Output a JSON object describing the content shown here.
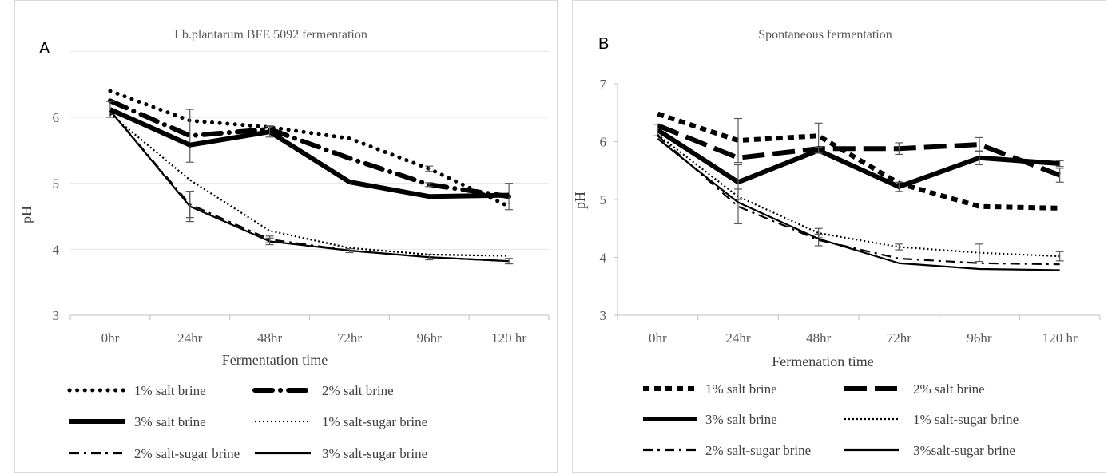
{
  "chart_data": [
    {
      "type": "line",
      "panel_letter": "A",
      "title": "Lb.plantarum BFE 5092 fermentation",
      "xlabel": "Fermentation time",
      "ylabel": "pH",
      "categories": [
        "0hr",
        "24hr",
        "48hr",
        "72hr",
        "96hr",
        "120 hr"
      ],
      "ylim": [
        3,
        7
      ],
      "yticks": [
        "3",
        "4",
        "5",
        "6"
      ],
      "grid": "horizontal",
      "legend_position": "bottom",
      "series": [
        {
          "name": "1% salt brine",
          "style": "dot",
          "values": [
            6.4,
            5.95,
            5.85,
            5.68,
            5.22,
            4.65
          ],
          "errors": [
            0,
            0,
            0,
            0,
            0.04,
            0
          ]
        },
        {
          "name": "2% salt brine",
          "style": "dashdot-heavy",
          "values": [
            6.25,
            5.72,
            5.82,
            5.38,
            4.98,
            4.8
          ],
          "errors": [
            0,
            0.4,
            0.05,
            0,
            0.03,
            0.2
          ]
        },
        {
          "name": "3% salt brine",
          "style": "solid-heavy",
          "values": [
            6.12,
            5.58,
            5.78,
            5.02,
            4.8,
            4.82
          ],
          "errors": [
            0.12,
            0,
            0.08,
            0,
            0,
            0
          ]
        },
        {
          "name": "1% salt-sugar brine",
          "style": "dot-thin",
          "values": [
            6.05,
            5.05,
            4.28,
            4.02,
            3.92,
            3.9
          ],
          "errors": [
            0,
            0,
            0,
            0,
            0,
            0
          ]
        },
        {
          "name": "2% salt-sugar brine",
          "style": "dashdot-thin",
          "values": [
            6.1,
            4.68,
            4.15,
            3.98,
            3.88,
            3.82
          ],
          "errors": [
            0,
            0.2,
            0.05,
            0,
            0,
            0.04
          ]
        },
        {
          "name": "3% salt-sugar brine",
          "style": "solid-thin",
          "values": [
            6.1,
            4.65,
            4.12,
            3.98,
            3.88,
            3.82
          ],
          "errors": [
            0,
            0.23,
            0.05,
            0.03,
            0.04,
            0.04
          ]
        }
      ]
    },
    {
      "type": "line",
      "panel_letter": "B",
      "title": "Spontaneous fermentation",
      "xlabel": "Fermenation time",
      "ylabel": "pH",
      "categories": [
        "0hr",
        "24hr",
        "48hr",
        "72hr",
        "96hr",
        "120 hr"
      ],
      "ylim": [
        3,
        7
      ],
      "yticks": [
        "3",
        "4",
        "5",
        "6",
        "7"
      ],
      "grid": "none",
      "legend_position": "bottom",
      "series": [
        {
          "name": "1% salt brine",
          "style": "dash-square",
          "values": [
            6.48,
            6.02,
            6.1,
            5.28,
            4.88,
            4.85
          ],
          "errors": [
            0,
            0.38,
            0.22,
            0,
            0,
            0
          ]
        },
        {
          "name": "2% salt brine",
          "style": "longdash-heavy",
          "values": [
            6.28,
            5.72,
            5.88,
            5.88,
            5.95,
            5.42
          ],
          "errors": [
            0,
            0,
            0,
            0.1,
            0.12,
            0.12
          ]
        },
        {
          "name": "3% salt brine",
          "style": "solid-heavy",
          "values": [
            6.2,
            5.3,
            5.85,
            5.22,
            5.72,
            5.62
          ],
          "errors": [
            0.1,
            0.3,
            0.05,
            0.08,
            0.12,
            0.05
          ]
        },
        {
          "name": "1% salt-sugar brine",
          "style": "dot-thin",
          "values": [
            6.12,
            5.05,
            4.42,
            4.18,
            4.08,
            4.02
          ],
          "errors": [
            0,
            0,
            0.08,
            0.05,
            0.15,
            0.08
          ]
        },
        {
          "name": "2% salt-sugar brine",
          "style": "dashdot-thin",
          "values": [
            6.1,
            4.88,
            4.3,
            3.98,
            3.9,
            3.88
          ],
          "errors": [
            0,
            0.3,
            0.1,
            0,
            0,
            0
          ]
        },
        {
          "name": "3%salt-sugar brine",
          "style": "solid-thin",
          "values": [
            6.05,
            4.95,
            4.32,
            3.9,
            3.8,
            3.78
          ],
          "errors": [
            0,
            0,
            0,
            0,
            0,
            0
          ]
        }
      ]
    }
  ]
}
